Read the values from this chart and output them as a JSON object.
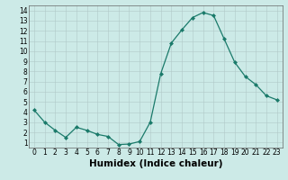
{
  "x": [
    0,
    1,
    2,
    3,
    4,
    5,
    6,
    7,
    8,
    9,
    10,
    11,
    12,
    13,
    14,
    15,
    16,
    17,
    18,
    19,
    20,
    21,
    22,
    23
  ],
  "y": [
    4.2,
    3.0,
    2.2,
    1.5,
    2.5,
    2.2,
    1.8,
    1.6,
    0.8,
    0.85,
    1.1,
    3.0,
    7.8,
    10.8,
    12.1,
    13.3,
    13.8,
    13.5,
    11.2,
    8.9,
    7.5,
    6.7,
    5.6,
    5.2
  ],
  "xlabel": "Humidex (Indice chaleur)",
  "xlim": [
    -0.5,
    23.5
  ],
  "ylim": [
    0.5,
    14.5
  ],
  "yticks": [
    1,
    2,
    3,
    4,
    5,
    6,
    7,
    8,
    9,
    10,
    11,
    12,
    13,
    14
  ],
  "xticks": [
    0,
    1,
    2,
    3,
    4,
    5,
    6,
    7,
    8,
    9,
    10,
    11,
    12,
    13,
    14,
    15,
    16,
    17,
    18,
    19,
    20,
    21,
    22,
    23
  ],
  "line_color": "#1a7a6a",
  "marker_size": 2.0,
  "bg_color": "#cceae7",
  "grid_color": "#b0c8c8",
  "tick_fontsize": 5.5,
  "xlabel_fontsize": 7.5
}
